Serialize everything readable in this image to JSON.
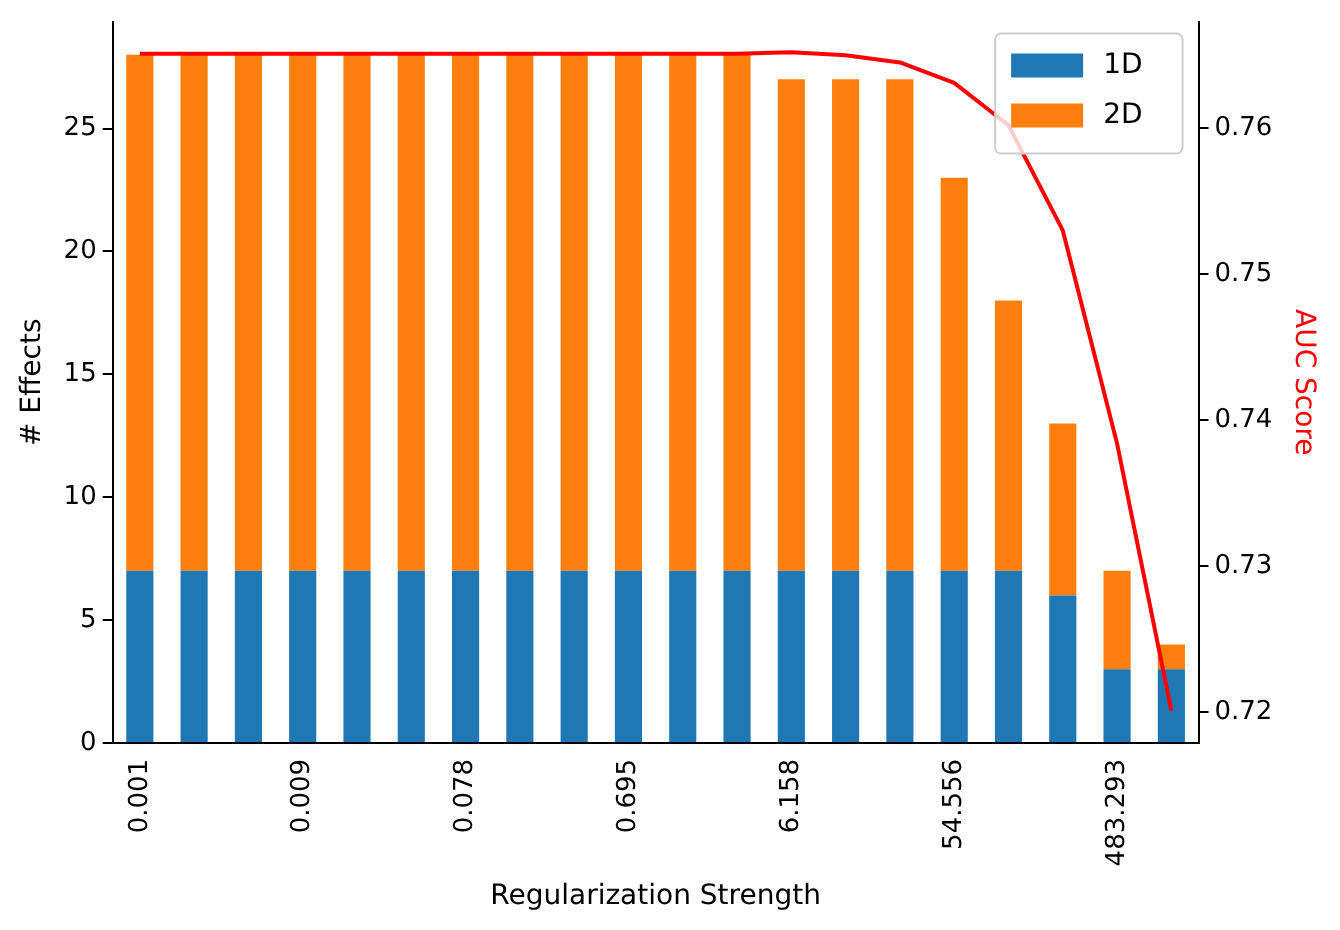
{
  "chart_data": {
    "type": "bar",
    "stacked": true,
    "xlabel": "Regularization Strength",
    "ylabel": "# Effects",
    "y2label": "AUC Score",
    "categories": [
      "0.001",
      null,
      null,
      "0.009",
      null,
      null,
      "0.078",
      null,
      null,
      "0.695",
      null,
      null,
      "6.158",
      null,
      null,
      "54.556",
      null,
      null,
      "483.293",
      null
    ],
    "series": [
      {
        "name": "1D",
        "color": "#1f77b4",
        "values": [
          7,
          7,
          7,
          7,
          7,
          7,
          7,
          7,
          7,
          7,
          7,
          7,
          7,
          7,
          7,
          7,
          7,
          6,
          3,
          3
        ]
      },
      {
        "name": "2D",
        "color": "#ff7f0e",
        "values": [
          21,
          21,
          21,
          21,
          21,
          21,
          21,
          21,
          21,
          21,
          21,
          21,
          20,
          20,
          20,
          16,
          11,
          7,
          4,
          1
        ]
      },
      {
        "type": "line",
        "axis": "y2",
        "color": "#ff0000",
        "values": [
          0.7651,
          0.7651,
          0.7651,
          0.7651,
          0.7651,
          0.7651,
          0.7651,
          0.7651,
          0.7651,
          0.7651,
          0.7651,
          0.7651,
          0.7652,
          0.765,
          0.7645,
          0.7631,
          0.7602,
          0.753,
          0.7384,
          0.7201
        ]
      }
    ],
    "ylim": [
      0,
      29.35
    ],
    "yticks": [
      0,
      5,
      10,
      15,
      20,
      25
    ],
    "y2lim": [
      0.7179,
      0.7673
    ],
    "y2ticks": [
      0.72,
      0.73,
      0.74,
      0.75,
      0.76
    ],
    "legend": "top right",
    "grid": false,
    "marker": "none"
  }
}
